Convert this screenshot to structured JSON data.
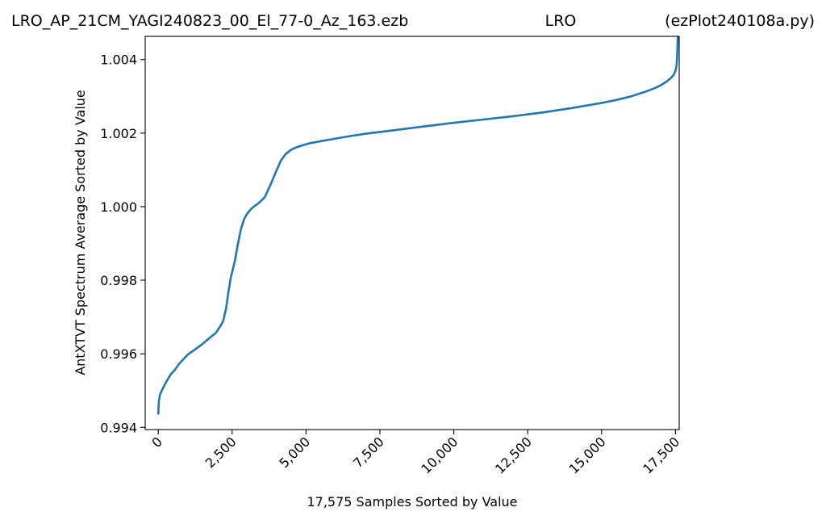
{
  "titles": {
    "left": "LRO_AP_21CM_YAGI240823_00_El_77-0_Az_163.ezb",
    "center": "LRO",
    "right": "(ezPlot240108a.py)"
  },
  "chart_data": {
    "type": "line",
    "xlabel": "17,575 Samples Sorted by Value",
    "ylabel": "AntXTVT Spectrum Average Sorted by Value",
    "xlim": [
      -441,
      17625
    ],
    "ylim": [
      0.99394,
      1.00463
    ],
    "xticks": [
      0,
      2500,
      5000,
      7500,
      10000,
      12500,
      15000,
      17500
    ],
    "xtick_labels": [
      "0",
      "2,500",
      "5,000",
      "7,500",
      "10,000",
      "12,500",
      "15,000",
      "17,500"
    ],
    "yticks": [
      0.994,
      0.996,
      0.998,
      1.0,
      1.002,
      1.004
    ],
    "ytick_labels": [
      "0.994",
      "0.996",
      "0.998",
      "1.000",
      "1.002",
      "1.004"
    ],
    "grid": false,
    "series": [
      {
        "color": "#1f77b4",
        "x": [
          0,
          20,
          60,
          150,
          280,
          430,
          550,
          700,
          850,
          1000,
          1250,
          1500,
          1750,
          1950,
          2100,
          2200,
          2300,
          2350,
          2450,
          2600,
          2700,
          2800,
          2900,
          3000,
          3100,
          3200,
          3400,
          3600,
          3800,
          4000,
          4150,
          4300,
          4500,
          4700,
          4900,
          5100,
          5500,
          6000,
          6500,
          7000,
          7500,
          8000,
          9000,
          10000,
          11000,
          12000,
          13000,
          14000,
          15000,
          15500,
          16000,
          16500,
          16800,
          17000,
          17200,
          17350,
          17450,
          17500,
          17530,
          17550,
          17565,
          17575
        ],
        "y": [
          0.99437,
          0.9947,
          0.9949,
          0.99505,
          0.99525,
          0.99545,
          0.99555,
          0.99572,
          0.99585,
          0.99598,
          0.99612,
          0.99627,
          0.99644,
          0.99657,
          0.99675,
          0.9969,
          0.99725,
          0.99755,
          0.99805,
          0.99855,
          0.999,
          0.9994,
          0.99965,
          0.9998,
          0.9999,
          0.99998,
          1.0001,
          1.00025,
          1.0006,
          1.00098,
          1.00125,
          1.00142,
          1.00155,
          1.00162,
          1.00167,
          1.00172,
          1.00178,
          1.00185,
          1.00192,
          1.00198,
          1.00203,
          1.00208,
          1.00218,
          1.00228,
          1.00237,
          1.00246,
          1.00256,
          1.00268,
          1.00282,
          1.0029,
          1.003,
          1.00313,
          1.00322,
          1.0033,
          1.0034,
          1.0035,
          1.0036,
          1.0037,
          1.0038,
          1.004,
          1.0043,
          1.00462
        ]
      }
    ]
  }
}
